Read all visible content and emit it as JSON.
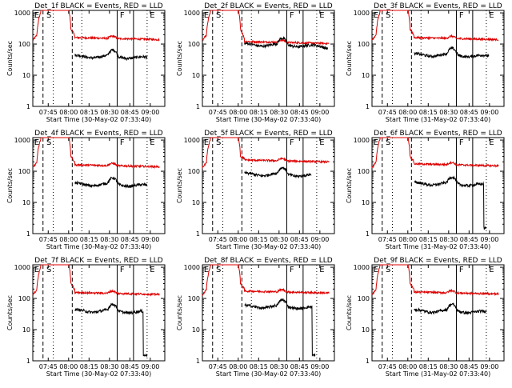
{
  "chart_data": {
    "type": "line",
    "y_axis": {
      "label": "Counts/sec",
      "scale": "log",
      "ylim": [
        1,
        1200
      ],
      "ticks": [
        1,
        10,
        100,
        1000
      ],
      "tick_labels": [
        "1",
        "10",
        "100",
        "1000"
      ]
    },
    "x_axis": {
      "tick_labels": [
        "07:45",
        "08:00",
        "08:15",
        "08:30",
        "08:45",
        "09:00"
      ]
    },
    "legend": {
      "black": "Events",
      "red": "LLD"
    },
    "marker_labels": {
      "E": "E",
      "S": "S",
      "F": "F"
    },
    "panels": [
      {
        "title": "Det_1f BLACK = Events, RED = LLD",
        "xlabel": "Start Time (30-May-02 07:33:40)"
      },
      {
        "title": "Det_2f BLACK = Events, RED = LLD",
        "xlabel": "Start Time (30-May-02 07:33:40)"
      },
      {
        "title": "Det_3f BLACK = Events, RED = LLD",
        "xlabel": "Start Time (31-May-02 07:33:40)"
      },
      {
        "title": "Det_4f BLACK = Events, RED = LLD",
        "xlabel": "Start Time (30-May-02 07:33:40)"
      },
      {
        "title": "Det_5f BLACK = Events, RED = LLD",
        "xlabel": "Start Time (30-May-02 07:33:40)"
      },
      {
        "title": "Det_6f BLACK = Events, RED = LLD",
        "xlabel": "Start Time (31-May-02 07:33:40)"
      },
      {
        "title": "Det_7f BLACK = Events, RED = LLD",
        "xlabel": "Start Time (30-May-02 07:33:40)"
      },
      {
        "title": "Det_8f BLACK = Events, RED = LLD",
        "xlabel": "Start Time (30-May-02 07:33:40)"
      },
      {
        "title": "Det_9f BLACK = Events, RED = LLD",
        "xlabel": "Start Time (31-May-02 07:33:40)"
      }
    ],
    "colors": {
      "events": "#000000",
      "lld": "#dd0000"
    }
  }
}
